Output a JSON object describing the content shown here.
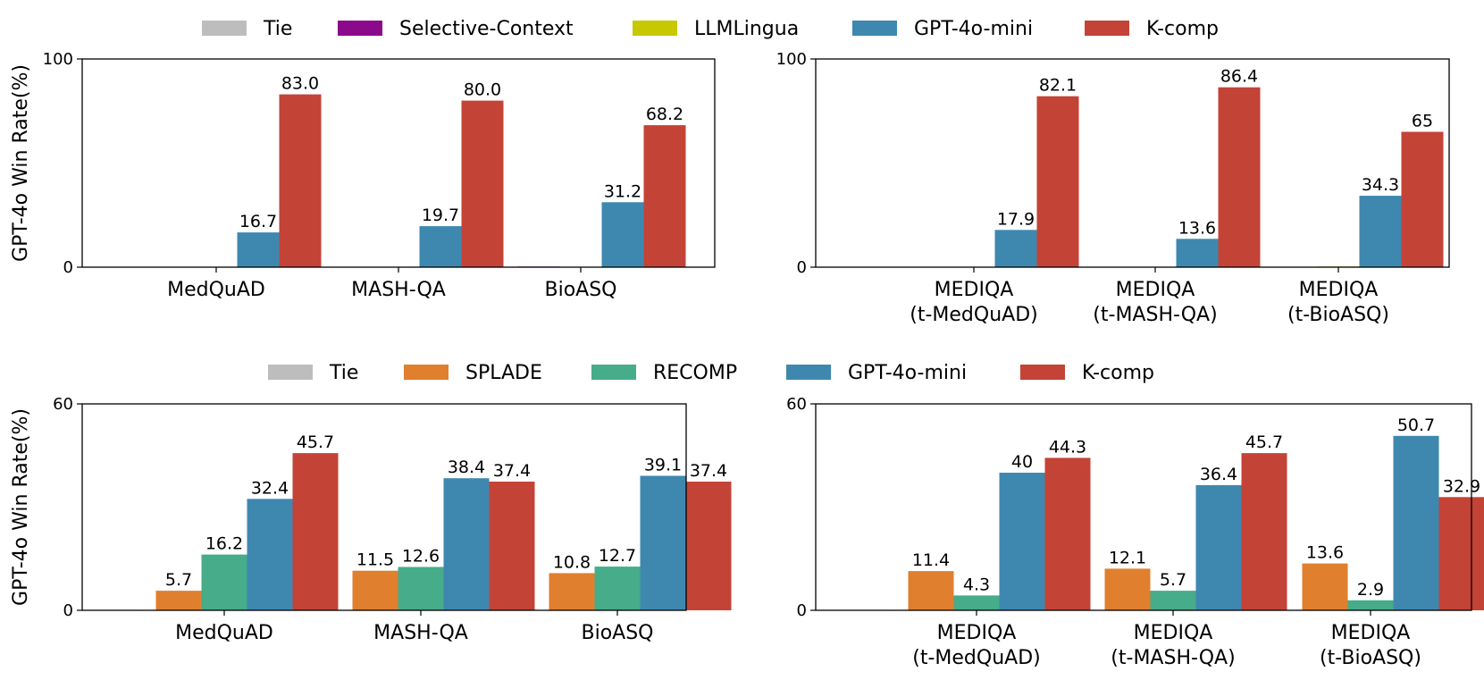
{
  "chart_data": [
    {
      "type": "bar",
      "panel": "top-left",
      "ylabel": "GPT-4o Win Rate(%)",
      "ylim": [
        0,
        100
      ],
      "yticks": [
        "0",
        "100"
      ],
      "categories": [
        [
          "MedQuAD"
        ],
        [
          "MASH-QA"
        ],
        [
          "BioASQ"
        ]
      ],
      "series": [
        {
          "name": "Tie",
          "color": "#bdbdbd",
          "values": [
            0,
            0,
            0
          ],
          "labels": [
            "",
            "",
            ""
          ]
        },
        {
          "name": "Selective-Context",
          "color": "#8b0a8b",
          "values": [
            0,
            0,
            0.3
          ],
          "labels": [
            "",
            "",
            ""
          ]
        },
        {
          "name": "LLMLingua",
          "color": "#c8c800",
          "values": [
            0,
            0,
            0
          ],
          "labels": [
            "",
            "",
            ""
          ]
        },
        {
          "name": "GPT-4o-mini",
          "color": "#3e88b0",
          "values": [
            16.7,
            19.7,
            31.2
          ],
          "labels": [
            "16.7",
            "19.7",
            "31.2"
          ]
        },
        {
          "name": "K-comp",
          "color": "#c44337",
          "values": [
            83.0,
            80.0,
            68.2
          ],
          "labels": [
            "83.0",
            "80.0",
            "68.2"
          ]
        }
      ]
    },
    {
      "type": "bar",
      "panel": "top-right",
      "ylabel": "",
      "ylim": [
        0,
        100
      ],
      "yticks": [
        "0",
        "100"
      ],
      "categories": [
        [
          "MEDIQA",
          "(t-MedQuAD)"
        ],
        [
          "MEDIQA",
          "(t-MASH-QA)"
        ],
        [
          "MEDIQA",
          "(t-BioASQ)"
        ]
      ],
      "series": [
        {
          "name": "Tie",
          "color": "#bdbdbd",
          "values": [
            0,
            0,
            0
          ],
          "labels": [
            "",
            "",
            ""
          ]
        },
        {
          "name": "Selective-Context",
          "color": "#8b0a8b",
          "values": [
            0,
            0,
            0
          ],
          "labels": [
            "",
            "",
            ""
          ]
        },
        {
          "name": "LLMLingua",
          "color": "#c8c800",
          "values": [
            0,
            0,
            0.3
          ],
          "labels": [
            "",
            "",
            ""
          ]
        },
        {
          "name": "GPT-4o-mini",
          "color": "#3e88b0",
          "values": [
            17.9,
            13.6,
            34.3
          ],
          "labels": [
            "17.9",
            "13.6",
            "34.3"
          ]
        },
        {
          "name": "K-comp",
          "color": "#c44337",
          "values": [
            82.1,
            86.4,
            65
          ],
          "labels": [
            "82.1",
            "86.4",
            "65"
          ]
        }
      ]
    },
    {
      "type": "bar",
      "panel": "bottom-left",
      "ylabel": "GPT-4o Win Rate(%)",
      "ylim": [
        0,
        60
      ],
      "yticks": [
        "0",
        "60"
      ],
      "categories": [
        [
          "MedQuAD"
        ],
        [
          "MASH-QA"
        ],
        [
          "BioASQ"
        ]
      ],
      "series": [
        {
          "name": "Tie",
          "color": "#bdbdbd",
          "values": [
            0,
            0,
            0
          ],
          "labels": [
            "",
            "",
            ""
          ]
        },
        {
          "name": "SPLADE",
          "color": "#e07f2e",
          "values": [
            5.7,
            11.5,
            10.8
          ],
          "labels": [
            "5.7",
            "11.5",
            "10.8"
          ]
        },
        {
          "name": "RECOMP",
          "color": "#46ac8a",
          "values": [
            16.2,
            12.6,
            12.7
          ],
          "labels": [
            "16.2",
            "12.6",
            "12.7"
          ]
        },
        {
          "name": "GPT-4o-mini",
          "color": "#3e88b0",
          "values": [
            32.4,
            38.4,
            39.1
          ],
          "labels": [
            "32.4",
            "38.4",
            "39.1"
          ]
        },
        {
          "name": "K-comp",
          "color": "#c44337",
          "values": [
            45.7,
            37.4,
            37.4
          ],
          "labels": [
            "45.7",
            "37.4",
            "37.4"
          ]
        }
      ]
    },
    {
      "type": "bar",
      "panel": "bottom-right",
      "ylabel": "",
      "ylim": [
        0,
        60
      ],
      "yticks": [
        "0",
        "60"
      ],
      "categories": [
        [
          "MEDIQA",
          "(t-MedQuAD)"
        ],
        [
          "MEDIQA",
          "(t-MASH-QA)"
        ],
        [
          "MEDIQA",
          "(t-BioASQ)"
        ]
      ],
      "series": [
        {
          "name": "Tie",
          "color": "#bdbdbd",
          "values": [
            0,
            0,
            0
          ],
          "labels": [
            "",
            "",
            ""
          ]
        },
        {
          "name": "SPLADE",
          "color": "#e07f2e",
          "values": [
            11.4,
            12.1,
            13.6
          ],
          "labels": [
            "11.4",
            "12.1",
            "13.6"
          ]
        },
        {
          "name": "RECOMP",
          "color": "#46ac8a",
          "values": [
            4.3,
            5.7,
            2.9
          ],
          "labels": [
            "4.3",
            "5.7",
            "2.9"
          ]
        },
        {
          "name": "GPT-4o-mini",
          "color": "#3e88b0",
          "values": [
            40,
            36.4,
            50.7
          ],
          "labels": [
            "40",
            "36.4",
            "50.7"
          ]
        },
        {
          "name": "K-comp",
          "color": "#c44337",
          "values": [
            44.3,
            45.7,
            32.9
          ],
          "labels": [
            "44.3",
            "45.7",
            "32.9"
          ]
        }
      ]
    }
  ],
  "legends": [
    {
      "row": "top",
      "items": [
        {
          "label": "Tie",
          "color": "#bdbdbd"
        },
        {
          "label": "Selective-Context",
          "color": "#8b0a8b"
        },
        {
          "label": "LLMLingua",
          "color": "#c8c800"
        },
        {
          "label": "GPT-4o-mini",
          "color": "#3e88b0"
        },
        {
          "label": "K-comp",
          "color": "#c44337"
        }
      ]
    },
    {
      "row": "bottom",
      "items": [
        {
          "label": "Tie",
          "color": "#bdbdbd"
        },
        {
          "label": "SPLADE",
          "color": "#e07f2e"
        },
        {
          "label": "RECOMP",
          "color": "#46ac8a"
        },
        {
          "label": "GPT-4o-mini",
          "color": "#3e88b0"
        },
        {
          "label": "K-comp",
          "color": "#c44337"
        }
      ]
    }
  ]
}
